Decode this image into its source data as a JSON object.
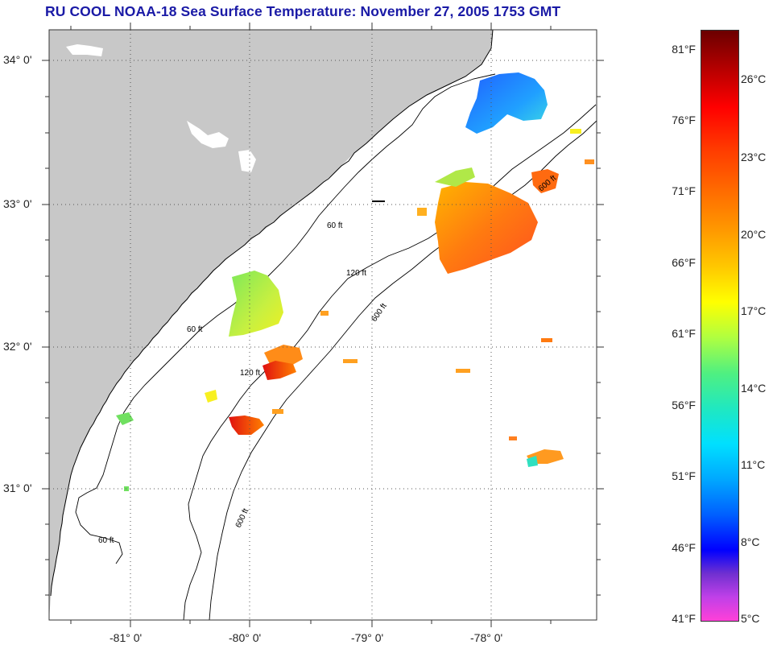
{
  "title": "RU COOL  NOAA-18  Sea Surface Temperature:  November 27, 2005 1753 GMT",
  "map": {
    "latitude_labels": [
      "34° 0'",
      "33° 0'",
      "32° 0'",
      "31° 0'"
    ],
    "longitude_labels": [
      "-81° 0'",
      "-80° 0'",
      "-79° 0'",
      "-78° 0'"
    ],
    "isobath_labels": [
      "60 ft",
      "120 ft",
      "600 ft"
    ],
    "colors": {
      "land": "#c8c8c8",
      "ocean": "#ffffff",
      "coastline": "#000000",
      "isobath": "#000000",
      "grid": "#555555"
    }
  },
  "colorbar": {
    "fahrenheit": [
      "81°F",
      "76°F",
      "71°F",
      "66°F",
      "61°F",
      "56°F",
      "51°F",
      "46°F",
      "41°F"
    ],
    "celsius": [
      "26°C",
      "23°C",
      "20°C",
      "17°C",
      "14°C",
      "11°C",
      "8°C",
      "5°C"
    ]
  }
}
